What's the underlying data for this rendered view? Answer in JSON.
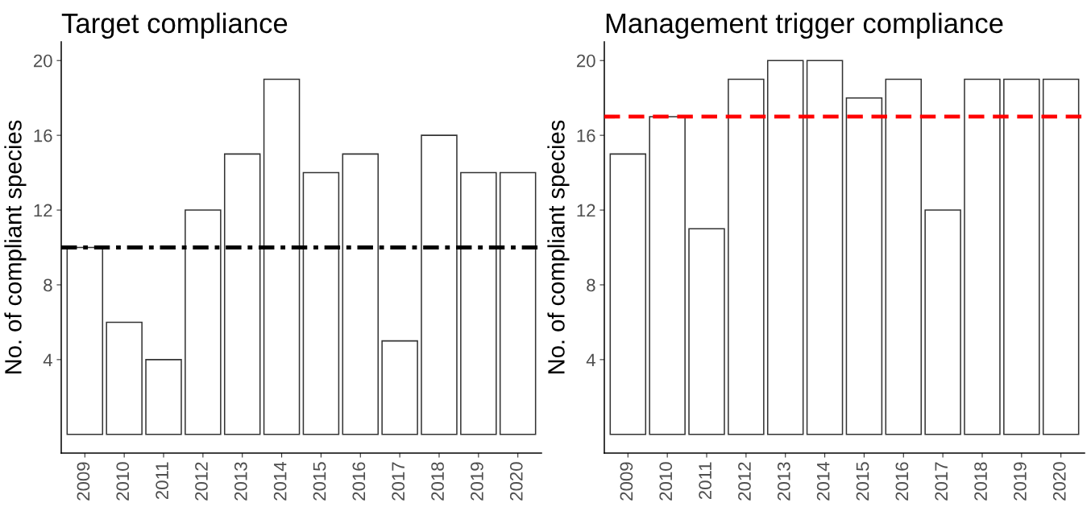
{
  "chart_data": [
    {
      "type": "bar",
      "title": "Target compliance",
      "ylabel": "No. of compliant species",
      "categories": [
        "2009",
        "2010",
        "2011",
        "2012",
        "2013",
        "2014",
        "2015",
        "2016",
        "2017",
        "2018",
        "2019",
        "2020"
      ],
      "values": [
        10,
        6,
        4,
        12,
        15,
        19,
        14,
        15,
        5,
        16,
        14,
        14
      ],
      "color": "#ffffff",
      "ylim": [
        -1,
        21
      ],
      "yticks": [
        4,
        8,
        12,
        16,
        20
      ],
      "grid": false,
      "legend": false,
      "ref_lines": [
        {
          "axis": "y",
          "value": 10,
          "label": null,
          "color": "#000000",
          "line_style": "dashdot"
        }
      ]
    },
    {
      "type": "bar",
      "title": "Management trigger compliance",
      "ylabel": "No. of compliant species",
      "categories": [
        "2009",
        "2010",
        "2011",
        "2012",
        "2013",
        "2014",
        "2015",
        "2016",
        "2017",
        "2018",
        "2019",
        "2020"
      ],
      "values": [
        15,
        17,
        11,
        19,
        20,
        20,
        18,
        19,
        12,
        19,
        19,
        19
      ],
      "color": "#ffffff",
      "ylim": [
        -1,
        21
      ],
      "yticks": [
        4,
        8,
        12,
        16,
        20
      ],
      "grid": false,
      "legend": false,
      "ref_lines": [
        {
          "axis": "y",
          "value": 17,
          "label": null,
          "color": "#ff0000",
          "line_style": "dashed"
        }
      ]
    }
  ]
}
